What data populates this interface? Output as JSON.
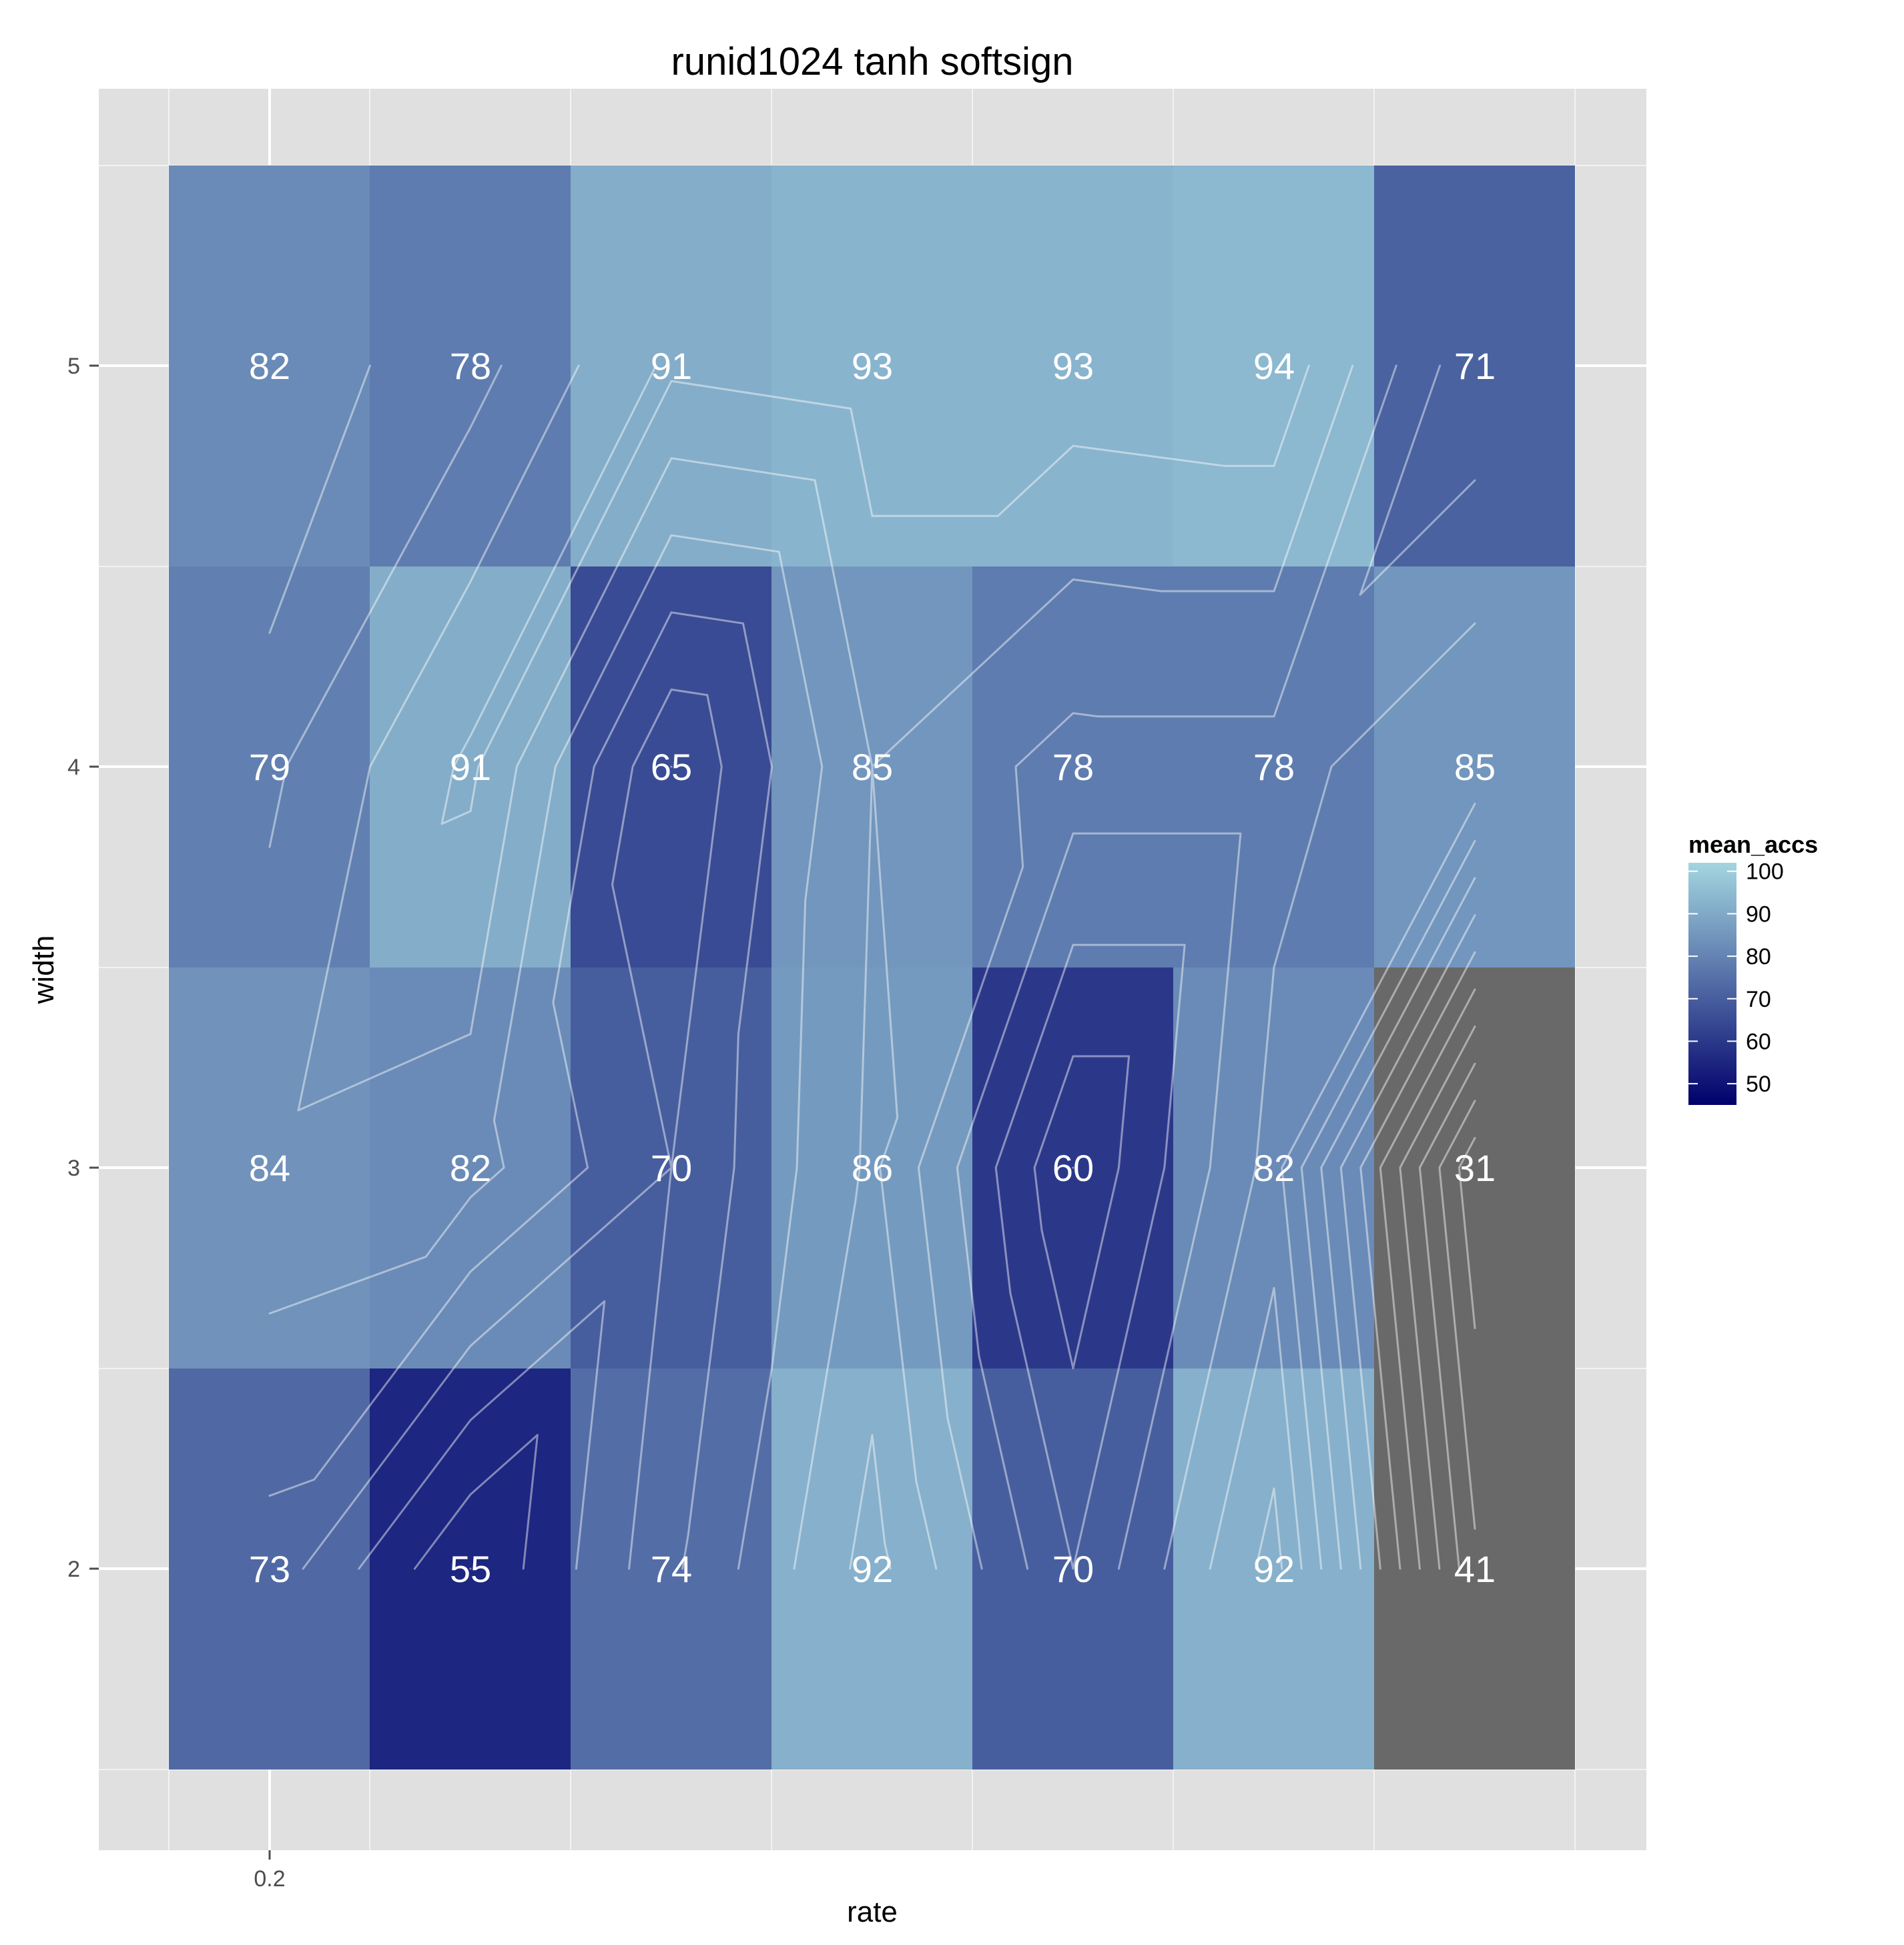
{
  "chart_data": {
    "type": "heatmap",
    "title": "runid1024 tanh softsign",
    "xlabel": "rate",
    "ylabel": "width",
    "x_tick_labels": [
      "0.2"
    ],
    "y_tick_labels": [
      "2",
      "3",
      "4",
      "5"
    ],
    "y_values": [
      2,
      3,
      4,
      5
    ],
    "columns": 7,
    "values": [
      [
        73,
        55,
        74,
        92,
        70,
        92,
        41
      ],
      [
        84,
        82,
        70,
        86,
        60,
        82,
        31
      ],
      [
        79,
        91,
        65,
        85,
        78,
        78,
        85
      ],
      [
        82,
        78,
        91,
        93,
        93,
        94,
        71
      ]
    ],
    "value_labels": [
      [
        "73",
        "55",
        "74",
        "92",
        "70",
        "92",
        "41"
      ],
      [
        "84",
        "82",
        "70",
        "86",
        "60",
        "82",
        "31"
      ],
      [
        "79",
        "91",
        "65",
        "85",
        "78",
        "78",
        "85"
      ],
      [
        "82",
        "78",
        "91",
        "93",
        "93",
        "94",
        "71"
      ]
    ],
    "contour_lines": true,
    "legend": {
      "title": "mean_accs",
      "position": "right",
      "range": [
        45,
        102
      ],
      "tick_values": [
        100,
        90,
        80,
        70,
        60,
        50
      ],
      "tick_labels": [
        "100",
        "90",
        "80",
        "70",
        "60",
        "50"
      ],
      "color_low": "#00006b",
      "color_high": "#a3d6e0",
      "na_color": "#696969"
    },
    "grid": true
  }
}
